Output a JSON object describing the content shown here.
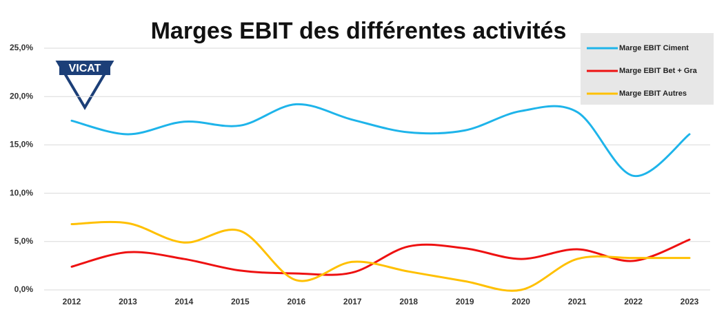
{
  "chart_data": {
    "type": "line",
    "title": "Marges EBIT des différentes activités",
    "logo": "VICAT",
    "categories": [
      "2012",
      "2013",
      "2014",
      "2015",
      "2016",
      "2017",
      "2018",
      "2019",
      "2020",
      "2021",
      "2022",
      "2023"
    ],
    "series": [
      {
        "name": "Marge EBIT Ciment",
        "color": "#1eb4ea",
        "values": [
          17.5,
          16.1,
          17.4,
          17.0,
          19.2,
          17.6,
          16.3,
          16.5,
          18.5,
          18.4,
          11.8,
          16.1
        ]
      },
      {
        "name": "Marge EBIT Bet + Gra",
        "color": "#ee1111",
        "values": [
          2.4,
          3.9,
          3.2,
          2.0,
          1.7,
          1.8,
          4.5,
          4.3,
          3.2,
          4.2,
          3.0,
          5.2
        ]
      },
      {
        "name": "Marge EBIT Autres",
        "color": "#ffc000",
        "values": [
          6.8,
          6.9,
          4.9,
          6.1,
          1.0,
          2.9,
          1.9,
          0.9,
          0.0,
          3.2,
          3.3,
          3.3
        ]
      }
    ],
    "ylim": [
      0,
      25
    ],
    "yticks": [
      {
        "value": 0,
        "label": "0,0%"
      },
      {
        "value": 5,
        "label": "5,0%"
      },
      {
        "value": 10,
        "label": "10,0%"
      },
      {
        "value": 15,
        "label": "15,0%"
      },
      {
        "value": 20,
        "label": "20,0%"
      },
      {
        "value": 25,
        "label": "25,0%"
      }
    ],
    "grid": true,
    "legend": "top-right"
  }
}
